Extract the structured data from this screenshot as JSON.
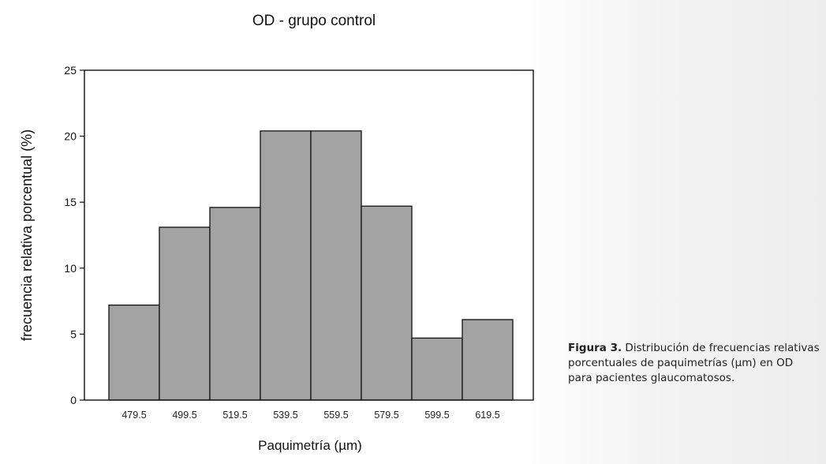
{
  "chart_data": {
    "type": "bar",
    "title": "OD - grupo control",
    "xlabel": "Paquimetría (µm)",
    "ylabel": "frecuencia relativa porcentual (%)",
    "categories": [
      "479.5",
      "499.5",
      "519.5",
      "539.5",
      "559.5",
      "579.5",
      "599.5",
      "619.5"
    ],
    "values": [
      7.2,
      13.1,
      14.6,
      20.4,
      20.4,
      14.7,
      4.7,
      6.1
    ],
    "ylim": [
      0,
      25
    ],
    "yticks": [
      "0",
      "5",
      "10",
      "15",
      "20",
      "25"
    ],
    "grid": false,
    "legend": "none",
    "bar_color": "#a3a3a3",
    "edge_color": "#111111"
  },
  "caption": {
    "label": "Figura 3.",
    "text": "Distribución de frecuencias relativas porcentuales de paquimetrías (µm) en OD para pacientes glaucomatosos."
  }
}
